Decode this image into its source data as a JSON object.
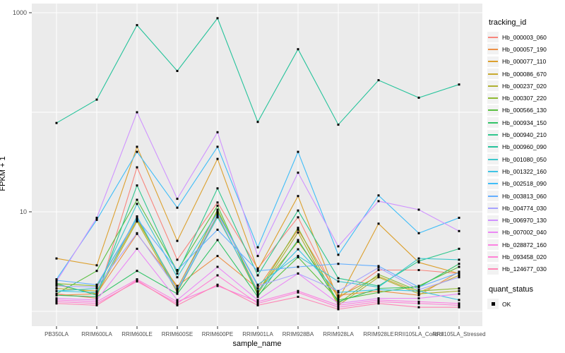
{
  "chart_data": {
    "type": "line",
    "title": "",
    "xlabel": "sample_name",
    "ylabel": "FPKM + 1",
    "y_scale": "log10",
    "ylim": [
      0.95,
      1100
    ],
    "grid": true,
    "legend_position": "right",
    "panel_bg": "#EBEBEB",
    "grid_color": "#FFFFFF",
    "axis_text_color": "#4D4D4D",
    "point_color": "#000000",
    "point_shape": "square",
    "y_gridlines": [
      1,
      10,
      100,
      1000
    ],
    "y_ticks_labeled": [
      {
        "value": 10,
        "label": "10"
      },
      {
        "value": 1000,
        "label": "1000"
      }
    ],
    "categories": [
      "PB350LA",
      "RRIM600LA",
      "RRIM600LE",
      "RRIM600SE",
      "RRIM600PE",
      "RRIM901LA",
      "RRIM928BA",
      "RRIM928LA",
      "RRIM928LE",
      "RRII105LA_Control",
      "RRII105LA_Stressed"
    ],
    "series": [
      {
        "name": "Hb_000003_060",
        "color": "#F8867D",
        "values": [
          1.5,
          1.35,
          28,
          3.3,
          12.4,
          2.7,
          8.8,
          1.35,
          2.6,
          2.6,
          2.4
        ]
      },
      {
        "name": "Hb_000057_190",
        "color": "#EC9148",
        "values": [
          1.45,
          1.5,
          6.0,
          1.8,
          3.6,
          1.7,
          6.6,
          1.45,
          1.6,
          1.45,
          2.5
        ]
      },
      {
        "name": "Hb_000077_110",
        "color": "#DCA02E",
        "values": [
          3.4,
          2.9,
          45,
          5.1,
          34,
          2.6,
          14.4,
          1.3,
          7.6,
          3.1,
          2.4
        ]
      },
      {
        "name": "Hb_000086_670",
        "color": "#C8AA30",
        "values": [
          1.7,
          1.6,
          8.3,
          1.7,
          10.2,
          1.6,
          5.0,
          1.4,
          2.25,
          1.55,
          2.3
        ]
      },
      {
        "name": "Hb_000237_020",
        "color": "#AFB131",
        "values": [
          1.85,
          1.5,
          8.0,
          1.55,
          9.2,
          1.5,
          6.2,
          1.15,
          2.2,
          1.5,
          1.6
        ]
      },
      {
        "name": "Hb_000307_220",
        "color": "#8FBA32",
        "values": [
          1.9,
          1.8,
          8.6,
          1.6,
          10.5,
          1.55,
          6.9,
          1.2,
          2.35,
          1.6,
          1.7
        ]
      },
      {
        "name": "Hb_000566_130",
        "color": "#5BC042",
        "values": [
          1.5,
          2.55,
          13.2,
          2.55,
          11.5,
          1.45,
          3.5,
          1.3,
          1.55,
          1.8,
          2.8
        ]
      },
      {
        "name": "Hb_000934_150",
        "color": "#33C468",
        "values": [
          1.45,
          1.4,
          2.55,
          1.5,
          5.2,
          1.4,
          5.2,
          1.25,
          1.7,
          1.75,
          3.0
        ]
      },
      {
        "name": "Hb_000940_210",
        "color": "#30C78E",
        "values": [
          1.9,
          1.45,
          18.4,
          2.4,
          17.2,
          2.3,
          10.3,
          2.15,
          1.8,
          3.2,
          4.25
        ]
      },
      {
        "name": "Hb_000960_090",
        "color": "#26C39B",
        "values": [
          78,
          134,
          750,
          260,
          880,
          80,
          430,
          75,
          210,
          140,
          190
        ]
      },
      {
        "name": "Hb_001080_050",
        "color": "#3FC8CC",
        "values": [
          1.6,
          1.7,
          12,
          2.2,
          9.8,
          1.85,
          3.6,
          2.0,
          1.75,
          3.4,
          3.3
        ]
      },
      {
        "name": "Hb_001322_160",
        "color": "#3FC4E5",
        "values": [
          1.6,
          1.55,
          9.0,
          1.6,
          8.8,
          1.6,
          4.2,
          1.55,
          1.65,
          1.6,
          1.3
        ]
      },
      {
        "name": "Hb_002518_090",
        "color": "#3FBDF8",
        "values": [
          2.1,
          8.3,
          40,
          11,
          45,
          4.4,
          40,
          3.7,
          14.6,
          6.1,
          8.7
        ]
      },
      {
        "name": "Hb_003813_060",
        "color": "#64AFFF",
        "values": [
          2.05,
          1.85,
          8.5,
          2.6,
          6.6,
          2.55,
          2.8,
          3.0,
          2.85,
          1.75,
          2.45
        ]
      },
      {
        "name": "Hb_004774_030",
        "color": "#A8A3FF",
        "values": [
          1.8,
          1.75,
          6.1,
          1.65,
          9.5,
          1.8,
          2.4,
          1.6,
          2.75,
          1.65,
          2.2
        ]
      },
      {
        "name": "Hb_006970_130",
        "color": "#D093FF",
        "values": [
          2.0,
          8.7,
          100,
          13.5,
          63,
          3.6,
          24.7,
          4.5,
          12.8,
          10.5,
          6.4
        ]
      },
      {
        "name": "Hb_007002_040",
        "color": "#EB89F5",
        "values": [
          1.35,
          1.3,
          4.25,
          1.3,
          2.8,
          1.3,
          2.4,
          1.2,
          1.35,
          1.35,
          1.5
        ]
      },
      {
        "name": "Hb_028872_160",
        "color": "#FB82E2",
        "values": [
          1.3,
          1.25,
          2.1,
          1.25,
          1.8,
          1.25,
          1.6,
          1.15,
          1.3,
          1.25,
          1.2
        ]
      },
      {
        "name": "Hb_093458_020",
        "color": "#FF82D5",
        "values": [
          1.25,
          1.2,
          2.0,
          1.2,
          2.3,
          1.2,
          1.55,
          1.1,
          1.25,
          1.2,
          1.15
        ]
      },
      {
        "name": "Hb_124677_030",
        "color": "#FF85B5",
        "values": [
          1.2,
          1.15,
          2.05,
          1.15,
          1.85,
          1.15,
          1.4,
          1.05,
          1.2,
          1.1,
          1.1
        ]
      }
    ]
  },
  "legend": {
    "tracking_title": "tracking_id",
    "quant_title": "quant_status",
    "quant_ok_label": "OK"
  }
}
